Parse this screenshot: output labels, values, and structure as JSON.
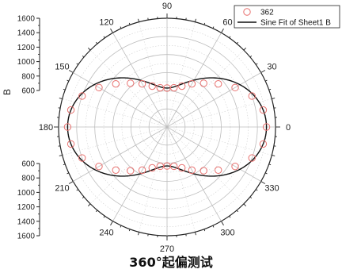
{
  "chart_data": {
    "type": "scatter",
    "coordinate_system": "polar",
    "title": "360°起偏测试",
    "radial_axis_label": "B",
    "radial_ticks": [
      600,
      800,
      1000,
      1200,
      1400,
      1600
    ],
    "radial_range": [
      400,
      1600
    ],
    "angle_ticks": [
      0,
      30,
      60,
      90,
      120,
      150,
      180,
      210,
      240,
      270,
      300,
      330
    ],
    "angle_unit": "degrees",
    "grid": true,
    "legend_position": "top-right",
    "series": [
      {
        "name": "362",
        "kind": "points",
        "marker": "open-circle",
        "color": "#e8716f",
        "theta": [
          0,
          10,
          20,
          30,
          40,
          50,
          60,
          70,
          80,
          90,
          100,
          110,
          120,
          130,
          140,
          150,
          160,
          170,
          180,
          190,
          200,
          210,
          220,
          230,
          240,
          250,
          260,
          270,
          280,
          290,
          300,
          310,
          320,
          330,
          340,
          350
        ],
        "r": [
          1500,
          1480,
          1400,
          1270,
          1140,
          1030,
          950,
          880,
          840,
          830,
          840,
          880,
          950,
          1030,
          1140,
          1270,
          1400,
          1480,
          1500,
          1480,
          1400,
          1270,
          1140,
          1030,
          950,
          880,
          840,
          830,
          840,
          880,
          950,
          1030,
          1140,
          1270,
          1400,
          1480
        ]
      },
      {
        "name": "Sine Fit of Sheet1 B",
        "kind": "line",
        "color": "#111111",
        "model": "r = 1165 + 335 * cos(2 * theta)",
        "r_mean": 1165,
        "r_amplitude": 335,
        "theta_multiplier": 2
      }
    ]
  }
}
